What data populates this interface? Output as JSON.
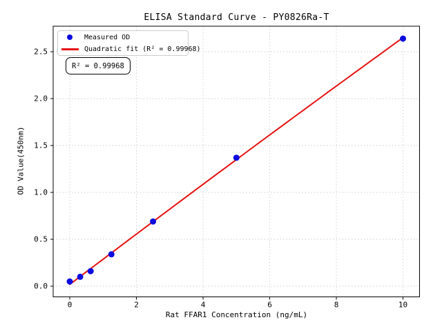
{
  "chart_data": {
    "type": "scatter",
    "title": "ELISA Standard Curve - PY0826Ra-T",
    "xlabel": "Rat FFAR1 Concentration (ng/mL)",
    "ylabel": "OD Value(450nm)",
    "x_ticks": [
      0,
      2,
      4,
      6,
      8,
      10
    ],
    "y_ticks": [
      "0.0",
      "0.5",
      "1.0",
      "1.5",
      "2.0",
      "2.5"
    ],
    "xlim": [
      -0.5,
      10.5
    ],
    "ylim": [
      -0.12,
      2.77
    ],
    "grid": "dashed",
    "series": [
      {
        "name": "Measured OD",
        "type": "scatter",
        "color": "#0b0be0",
        "x": [
          0,
          0.3125,
          0.625,
          1.25,
          2.5,
          5,
          10
        ],
        "y": [
          0.05,
          0.1,
          0.16,
          0.34,
          0.69,
          1.37,
          2.64
        ]
      },
      {
        "name": "Quadratic fit (R² = 0.99968)",
        "type": "line",
        "color": "#e60e0e",
        "fit": {
          "a": 0.019,
          "b": 0.2693,
          "c": -0.00062,
          "x_range": [
            0,
            10
          ]
        },
        "r_squared": 0.99968
      }
    ],
    "legend": {
      "position": "upper-left",
      "items": [
        {
          "label": "Measured OD",
          "marker": "circle",
          "color": "#0b0be0"
        },
        {
          "label": "Quadratic fit (R² = 0.99968)",
          "marker": "line",
          "color": "#e60e0e"
        }
      ]
    },
    "annotation": {
      "text": "R² = 0.99968"
    },
    "colors": {
      "grid": "#cdcdcd",
      "spine": "#000000",
      "tick_label": "#000000",
      "marker_blue": "#0b0be0",
      "line_red": "#e60e0e",
      "background": "#ffffff"
    }
  }
}
